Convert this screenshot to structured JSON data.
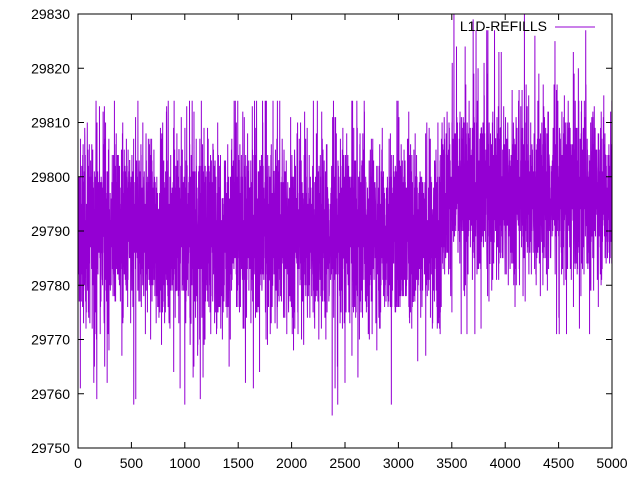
{
  "chart_data": {
    "type": "line",
    "title": "",
    "xlabel": "",
    "ylabel": "",
    "xlim": [
      0,
      5000
    ],
    "ylim": [
      29750,
      29830
    ],
    "x_ticks": [
      0,
      500,
      1000,
      1500,
      2000,
      2500,
      3000,
      3500,
      4000,
      4500,
      5000
    ],
    "y_ticks": [
      29750,
      29760,
      29770,
      29780,
      29790,
      29800,
      29810,
      29820,
      29830
    ],
    "grid": false,
    "legend": "top-right",
    "series": [
      {
        "name": "L1D-REFILLS",
        "color": "#9400d3",
        "num_points": 5000,
        "segments": [
          {
            "x_from": 0,
            "x_to": 3400,
            "center": 29790,
            "typical_low": 29776,
            "typical_high": 29806,
            "min": 29756,
            "max": 29814
          },
          {
            "x_from": 3400,
            "x_to": 5000,
            "center": 29797,
            "typical_low": 29784,
            "typical_high": 29812,
            "min": 29771,
            "max": 29830
          }
        ],
        "notable_points": [
          {
            "x": 900,
            "y": 29814
          },
          {
            "x": 1000,
            "y": 29758
          },
          {
            "x": 2380,
            "y": 29756
          },
          {
            "x": 3520,
            "y": 29830
          },
          {
            "x": 3700,
            "y": 29829
          },
          {
            "x": 4180,
            "y": 29830
          },
          {
            "x": 4790,
            "y": 29771
          }
        ]
      }
    ]
  }
}
